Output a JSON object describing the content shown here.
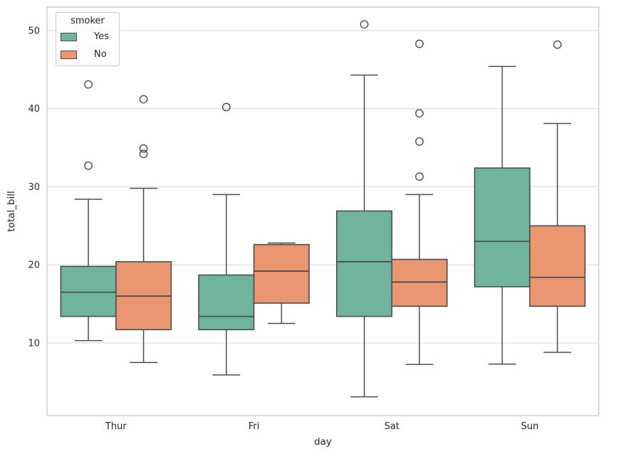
{
  "chart_data": {
    "type": "box",
    "title": "",
    "xlabel": "day",
    "ylabel": "total_bill",
    "categories": [
      "Thur",
      "Fri",
      "Sat",
      "Sun"
    ],
    "yticks": [
      10,
      20,
      30,
      40,
      50
    ],
    "ylim": [
      0.7,
      53.0
    ],
    "grid": true,
    "legend": {
      "title": "smoker",
      "position": "upper left",
      "entries": [
        {
          "label": "Yes",
          "color": "#70b49d"
        },
        {
          "label": "No",
          "color": "#e99671"
        }
      ]
    },
    "series": [
      {
        "name": "Yes",
        "color": "#70b49d",
        "boxes": [
          {
            "category": "Thur",
            "whislo": 10.3,
            "q1": 13.4,
            "med": 16.5,
            "q3": 19.8,
            "whishi": 28.4,
            "outliers": [
              32.7,
              43.1
            ]
          },
          {
            "category": "Fri",
            "whislo": 5.9,
            "q1": 11.7,
            "med": 13.4,
            "q3": 18.7,
            "whishi": 29.0,
            "outliers": [
              40.2
            ]
          },
          {
            "category": "Sat",
            "whislo": 3.1,
            "q1": 13.4,
            "med": 20.4,
            "q3": 26.9,
            "whishi": 44.3,
            "outliers": [
              50.8
            ]
          },
          {
            "category": "Sun",
            "whislo": 7.3,
            "q1": 17.2,
            "med": 23.0,
            "q3": 32.4,
            "whishi": 45.4,
            "outliers": []
          }
        ]
      },
      {
        "name": "No",
        "color": "#e99671",
        "boxes": [
          {
            "category": "Thur",
            "whislo": 7.5,
            "q1": 11.7,
            "med": 16.0,
            "q3": 20.4,
            "whishi": 29.8,
            "outliers": [
              34.2,
              34.9,
              41.2
            ]
          },
          {
            "category": "Fri",
            "whislo": 12.5,
            "q1": 15.1,
            "med": 19.2,
            "q3": 22.6,
            "whishi": 22.8,
            "outliers": []
          },
          {
            "category": "Sat",
            "whislo": 7.25,
            "q1": 14.7,
            "med": 17.8,
            "q3": 20.7,
            "whishi": 29.0,
            "outliers": [
              31.3,
              35.8,
              39.4,
              48.3
            ]
          },
          {
            "category": "Sun",
            "whislo": 8.8,
            "q1": 14.7,
            "med": 18.4,
            "q3": 25.0,
            "whishi": 38.1,
            "outliers": [
              48.2
            ]
          }
        ]
      }
    ],
    "colors": {
      "box_edge": "#4d4d4d",
      "grid": "#dcdcdc",
      "spine": "#cccccc",
      "text": "#262626",
      "background": "#ffffff"
    }
  }
}
